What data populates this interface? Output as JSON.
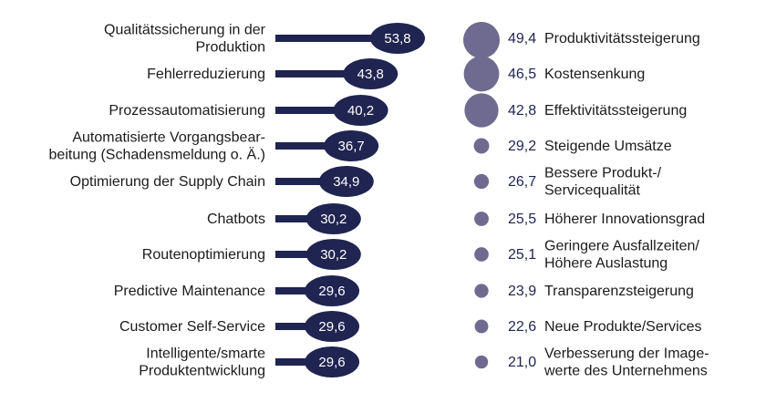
{
  "colors": {
    "bar": "#1f2451",
    "bubble": "#6f6a8f",
    "bubble_value_text": "#1f2451",
    "label_text": "#1b1b1b",
    "bar_value_text": "#ffffff"
  },
  "chart_data": [
    {
      "type": "bar",
      "orientation": "horizontal",
      "categories": [
        "Qualitätssicherung in der Produktion",
        "Fehlerreduzierung",
        "Prozessautomatisierung",
        "Automatisierte Vorgangsbearbeitung (Schadensmeldung o. Ä.)",
        "Optimierung der Supply Chain",
        "Chatbots",
        "Routenoptimierung",
        "Predictive Maintenance",
        "Customer Self-Service",
        "Intelligente/smarte Produktentwicklung"
      ],
      "category_lines": [
        [
          "Qualitätssicherung in der",
          "Produktion"
        ],
        [
          "Fehlerreduzierung"
        ],
        [
          "Prozessautomatisierung"
        ],
        [
          "Automatisierte Vorgangsbear-",
          "beitung (Schadensmeldung o. Ä.)"
        ],
        [
          "Optimierung der Supply Chain"
        ],
        [
          "Chatbots"
        ],
        [
          "Routenoptimierung"
        ],
        [
          "Predictive Maintenance"
        ],
        [
          "Customer Self-Service"
        ],
        [
          "Intelligente/smarte",
          "Produktentwicklung"
        ]
      ],
      "values": [
        53.8,
        43.8,
        40.2,
        36.7,
        34.9,
        30.2,
        30.2,
        29.6,
        29.6,
        29.6
      ],
      "value_labels": [
        "53,8",
        "43,8",
        "40,2",
        "36,7",
        "34,9",
        "30,2",
        "30,2",
        "29,6",
        "29,6",
        "29,6"
      ],
      "title": "",
      "xlabel": "",
      "ylabel": "",
      "xlim": [
        0,
        55
      ],
      "grid": false,
      "legend": "none"
    },
    {
      "type": "scatter",
      "encoding": "bubble-size",
      "categories": [
        "Produktivitätssteigerung",
        "Kostensenkung",
        "Effektivitätssteigerung",
        "Steigende Umsätze",
        "Bessere Produkt-/Servicequalität",
        "Höherer Innovationsgrad",
        "Geringere Ausfallzeiten/Höhere Auslastung",
        "Transparenzsteigerung",
        "Neue Produkte/Services",
        "Verbesserung der Imagewerte des Unternehmens"
      ],
      "category_lines": [
        [
          "Produktivitätssteigerung"
        ],
        [
          "Kostensenkung"
        ],
        [
          "Effektivitätssteigerung"
        ],
        [
          "Steigende Umsätze"
        ],
        [
          "Bessere Produkt-/",
          "Servicequalität"
        ],
        [
          "Höherer Innovationsgrad"
        ],
        [
          "Geringere Ausfallzeiten/",
          "Höhere Auslastung"
        ],
        [
          "Transparenzsteigerung"
        ],
        [
          "Neue Produkte/Services"
        ],
        [
          "Verbesserung der Image-",
          "werte des Unternehmens"
        ]
      ],
      "values": [
        49.4,
        46.5,
        42.8,
        29.2,
        26.7,
        25.5,
        25.1,
        23.9,
        22.6,
        21.0
      ],
      "value_labels": [
        "49,4",
        "46,5",
        "42,8",
        "29,2",
        "26,7",
        "25,5",
        "25,1",
        "23,9",
        "22,6",
        "21,0"
      ],
      "title": "",
      "grid": false,
      "legend": "none"
    }
  ]
}
